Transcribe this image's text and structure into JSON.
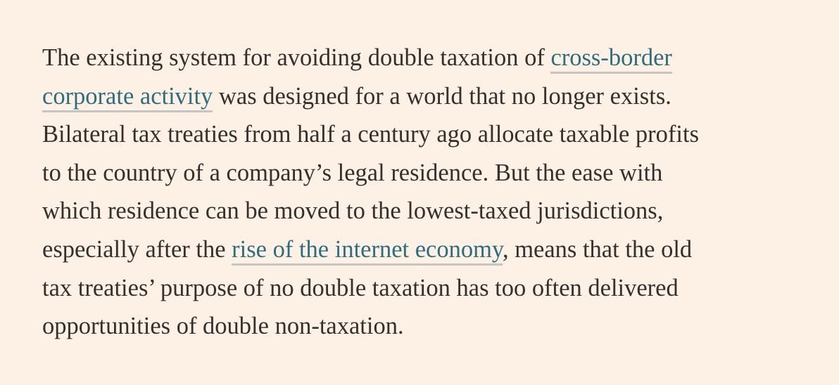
{
  "article": {
    "lines": [
      [
        {
          "text": "The existing system for avoiding double taxation of "
        },
        {
          "text": "cross-border",
          "link": true
        }
      ],
      [
        {
          "text": "corporate activity",
          "link": true
        },
        {
          "text": " was designed for a world that no longer exists."
        }
      ],
      [
        {
          "text": "Bilateral tax treaties from half a century ago allocate taxable profits"
        }
      ],
      [
        {
          "text": "to the country of a company’s legal residence. But the ease with"
        }
      ],
      [
        {
          "text": "which residence can be moved to the lowest-taxed jurisdictions,"
        }
      ],
      [
        {
          "text": "especially after the "
        },
        {
          "text": "rise of the internet economy",
          "link": true
        },
        {
          "text": ", means that the old"
        }
      ],
      [
        {
          "text": "tax treaties’ purpose of no double taxation has too often delivered"
        }
      ],
      [
        {
          "text": "opportunities of double non-taxation."
        }
      ]
    ]
  },
  "colors": {
    "background": "#fdf1e6",
    "text": "#33302e",
    "link": "#2f6d7d",
    "link_underline": "#c3c6c4"
  }
}
